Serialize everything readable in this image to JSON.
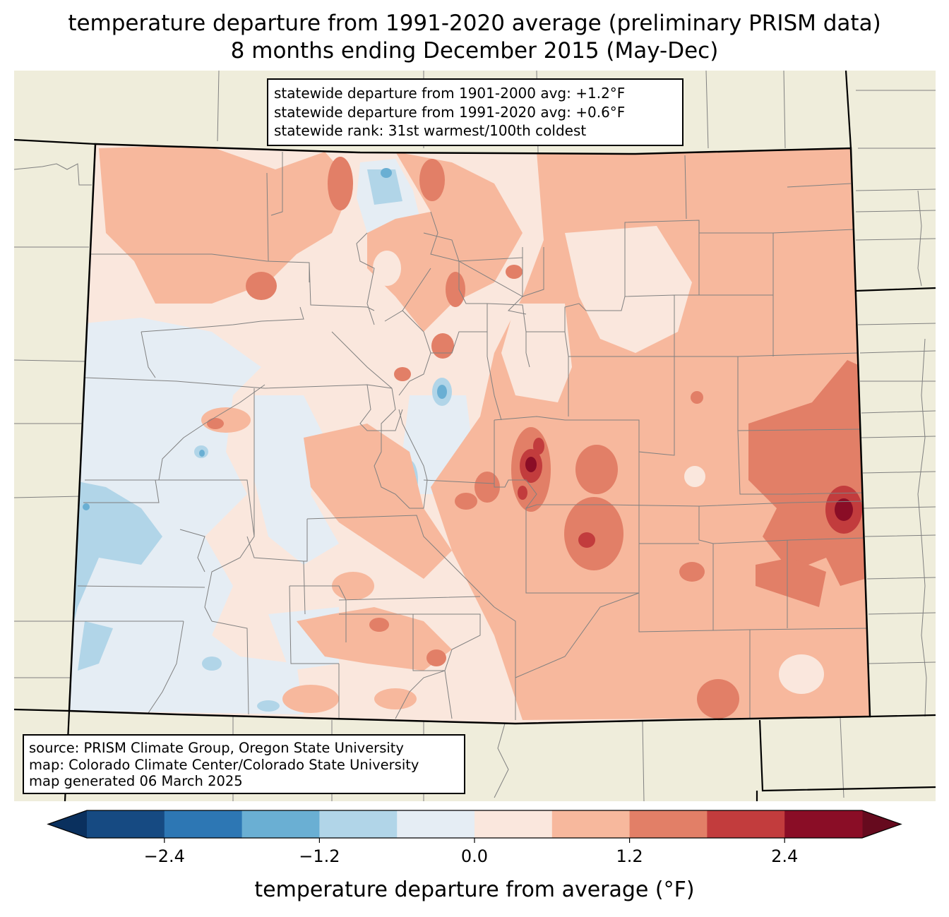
{
  "title": {
    "line1": "temperature departure from 1991-2020 average (preliminary PRISM data)",
    "line2": "8 months ending December 2015 (May-Dec)"
  },
  "stats": {
    "line1": "statewide departure from 1901-2000 avg: +1.2°F",
    "line2": "statewide departure from 1991-2020 avg: +0.6°F",
    "line3": "statewide rank: 31st warmest/100th coldest"
  },
  "source": {
    "line1": "source: PRISM Climate Group, Oregon State University",
    "line2": "map: Colorado Climate Center/Colorado State University",
    "line3": "map generated 06 March 2025"
  },
  "colorbar": {
    "label": "temperature departure from average (°F)",
    "levels": [
      -3.0,
      -2.4,
      -1.8,
      -1.2,
      -0.6,
      0.0,
      0.6,
      1.2,
      1.8,
      2.4,
      3.0
    ],
    "ticks": [
      -2.4,
      -1.2,
      0.0,
      1.2,
      2.4
    ],
    "tick_labels": [
      "−2.4",
      "−1.2",
      "0.0",
      "1.2",
      "2.4"
    ],
    "colors": [
      "#164a82",
      "#2d77b4",
      "#6aafd3",
      "#b1d5e8",
      "#e5edf4",
      "#fae7dd",
      "#f7b89d",
      "#e27f67",
      "#c23c3d",
      "#8a0d26"
    ],
    "under_color": "#0a305e",
    "over_color": "#660a1e"
  },
  "colors": {
    "background_land": "#efeddb",
    "state_border": "#000000",
    "county_border": "#808080"
  }
}
